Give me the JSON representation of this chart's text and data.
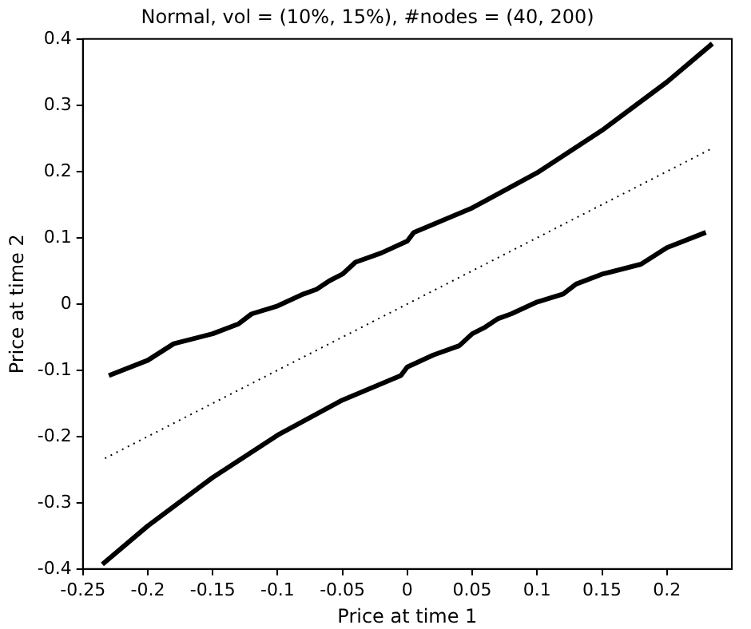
{
  "chart_data": {
    "type": "line",
    "title": "Normal, vol = (10%, 15%), #nodes = (40, 200)",
    "xlabel": "Price at time 1",
    "ylabel": "Price at time 2",
    "xlim": [
      -0.25,
      0.25
    ],
    "xticks": [
      -0.25,
      -0.2,
      -0.15,
      -0.1,
      -0.05,
      0,
      0.05,
      0.1,
      0.15,
      0.2
    ],
    "ylim": [
      -0.4,
      0.4
    ],
    "yticks": [
      -0.4,
      -0.3,
      -0.2,
      -0.1,
      0,
      0.1,
      0.2,
      0.3,
      0.4
    ],
    "grid": false,
    "legend": false,
    "marker": "none",
    "series": [
      {
        "color": "#000000",
        "line_style": "solid",
        "x": [
          -0.23,
          -0.2,
          -0.18,
          -0.15,
          -0.13,
          -0.12,
          -0.1,
          -0.08,
          -0.07,
          -0.06,
          -0.05,
          -0.04,
          -0.02,
          0,
          0.005,
          0.05,
          0.1,
          0.15,
          0.2,
          0.235
        ],
        "values": [
          -0.108,
          -0.085,
          -0.06,
          -0.045,
          -0.03,
          -0.015,
          -0.003,
          0.015,
          0.022,
          0.035,
          0.045,
          0.063,
          0.077,
          0.095,
          0.108,
          0.145,
          0.198,
          0.262,
          0.335,
          0.393
        ]
      },
      {
        "color": "#000000",
        "line_style": "dotted",
        "x": [
          -0.233,
          0.233
        ],
        "values": [
          -0.233,
          0.233
        ]
      },
      {
        "color": "#000000",
        "line_style": "solid",
        "x": [
          -0.235,
          -0.2,
          -0.15,
          -0.1,
          -0.05,
          -0.005,
          0,
          0.02,
          0.04,
          0.05,
          0.06,
          0.07,
          0.08,
          0.1,
          0.12,
          0.13,
          0.15,
          0.18,
          0.2,
          0.23
        ],
        "values": [
          -0.393,
          -0.335,
          -0.262,
          -0.198,
          -0.145,
          -0.108,
          -0.095,
          -0.077,
          -0.063,
          -0.045,
          -0.035,
          -0.022,
          -0.015,
          0.003,
          0.015,
          0.03,
          0.045,
          0.06,
          0.085,
          0.108
        ]
      }
    ]
  }
}
